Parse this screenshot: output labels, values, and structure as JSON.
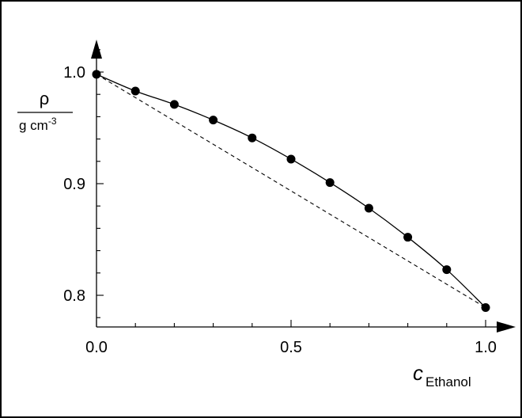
{
  "chart_data": {
    "type": "scatter",
    "title": "",
    "xlabel": {
      "main": "c",
      "sub": "Ethanol"
    },
    "ylabel": {
      "numerator": "ρ",
      "denominator": "g cm",
      "denominator_exp": "-3"
    },
    "xlim": [
      0.0,
      1.08
    ],
    "ylim": [
      0.775,
      1.025
    ],
    "x_ticks": [
      {
        "value": 0.0,
        "label": "0.0"
      },
      {
        "value": 0.5,
        "label": "0.5"
      },
      {
        "value": 1.0,
        "label": "1.0"
      }
    ],
    "x_minor_step": 0.1,
    "y_ticks": [
      {
        "value": 0.8,
        "label": "0.8"
      },
      {
        "value": 0.9,
        "label": "0.9"
      },
      {
        "value": 1.0,
        "label": "1.0"
      }
    ],
    "y_minor_step": 0.02,
    "grid": false,
    "series": [
      {
        "style": "markers-with-smooth-line",
        "color": "#000000",
        "x": [
          0.0,
          0.1,
          0.2,
          0.3,
          0.4,
          0.5,
          0.6,
          0.7,
          0.8,
          0.9,
          1.0
        ],
        "y": [
          0.998,
          0.983,
          0.971,
          0.957,
          0.941,
          0.922,
          0.901,
          0.878,
          0.852,
          0.823,
          0.789
        ]
      },
      {
        "style": "dashed-line",
        "color": "#000000",
        "x": [
          0.0,
          1.0
        ],
        "y": [
          0.998,
          0.789
        ]
      }
    ]
  }
}
